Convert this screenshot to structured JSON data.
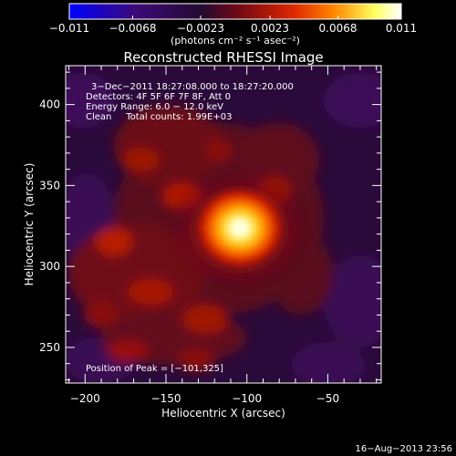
{
  "chart_data": {
    "type": "heatmap",
    "title": "Reconstructed RHESSI Image",
    "xlabel": "Heliocentric X (arcsec)",
    "ylabel": "Heliocentric Y (arcsec)",
    "xlim": [
      -212,
      -17
    ],
    "ylim": [
      228,
      424
    ],
    "xticks": [
      -200,
      -150,
      -100,
      -50
    ],
    "yticks": [
      250,
      300,
      350,
      400
    ],
    "colorbar": {
      "unit_label": "(photons cm⁻² s⁻¹ asec⁻²)",
      "range": [
        -0.011,
        0.011
      ],
      "tick_values": [
        -0.011,
        -0.0068,
        -0.0023,
        0.0023,
        0.0068,
        0.011
      ],
      "tick_labels": [
        "−0.011",
        "−0.0068",
        "−0.0023",
        "0.0023",
        "0.0068",
        "0.011"
      ],
      "colors": [
        "#0000ff",
        "#3c0a78",
        "#230a30",
        "#8a0a10",
        "#ff5a00",
        "#ffff80",
        "#ffffff"
      ]
    },
    "peak": {
      "x": -101,
      "y": 325,
      "value": 0.011
    },
    "annotations": [
      "3−Dec−2011 18:27:08.000 to 18:27:20.000",
      "Detectors: 4F 5F 6F 7F 8F, Att 0",
      "Energy Range: 6.0 − 12.0 keV",
      "Clean     Total counts: 1.99E+03"
    ],
    "peak_text": "Position of Peak = [−101,325]"
  },
  "footer_timestamp": "16−Aug−2013 23:56"
}
